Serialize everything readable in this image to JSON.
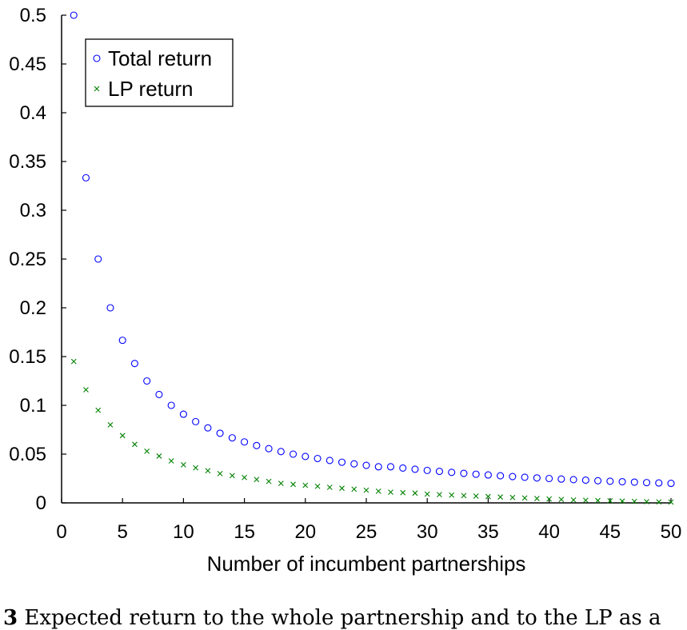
{
  "chart_data": {
    "type": "scatter",
    "title": "",
    "xlabel": "Number of incumbent partnerships",
    "ylabel": "",
    "xlim": [
      0,
      50
    ],
    "ylim": [
      0,
      0.5
    ],
    "xticks": [
      0,
      5,
      10,
      15,
      20,
      25,
      30,
      35,
      40,
      45,
      50
    ],
    "xtick_labels": [
      "0",
      "5",
      "10",
      "15",
      "20",
      "25",
      "30",
      "35",
      "40",
      "45",
      "50"
    ],
    "yticks": [
      0,
      0.05,
      0.1,
      0.15,
      0.2,
      0.25,
      0.3,
      0.35,
      0.4,
      0.45,
      0.5
    ],
    "ytick_labels": [
      "0",
      "0.05",
      "0.1",
      "0.15",
      "0.2",
      "0.25",
      "0.3",
      "0.35",
      "0.4",
      "0.45",
      "0.5"
    ],
    "grid": false,
    "legend_position": "top-left",
    "x": [
      1,
      2,
      3,
      4,
      5,
      6,
      7,
      8,
      9,
      10,
      11,
      12,
      13,
      14,
      15,
      16,
      17,
      18,
      19,
      20,
      21,
      22,
      23,
      24,
      25,
      26,
      27,
      28,
      29,
      30,
      31,
      32,
      33,
      34,
      35,
      36,
      37,
      38,
      39,
      40,
      41,
      42,
      43,
      44,
      45,
      46,
      47,
      48,
      49,
      50
    ],
    "series": [
      {
        "name": "Total return",
        "marker": "circle",
        "color": "#0000ff",
        "values": [
          0.5,
          0.3333,
          0.25,
          0.2,
          0.1667,
          0.1429,
          0.125,
          0.1111,
          0.1,
          0.0909,
          0.0833,
          0.0769,
          0.0714,
          0.0667,
          0.0625,
          0.0588,
          0.0556,
          0.0526,
          0.05,
          0.0476,
          0.0455,
          0.0435,
          0.0417,
          0.04,
          0.0385,
          0.037,
          0.037,
          0.0357,
          0.0345,
          0.0333,
          0.0323,
          0.0313,
          0.0303,
          0.0294,
          0.0286,
          0.0278,
          0.027,
          0.0263,
          0.0256,
          0.025,
          0.0244,
          0.0238,
          0.0233,
          0.0227,
          0.0222,
          0.0217,
          0.0213,
          0.0208,
          0.0204,
          0.02
        ]
      },
      {
        "name": "LP return",
        "marker": "x",
        "color": "#008000",
        "values": [
          0.145,
          0.116,
          0.095,
          0.08,
          0.069,
          0.06,
          0.053,
          0.048,
          0.043,
          0.039,
          0.036,
          0.033,
          0.03,
          0.028,
          0.026,
          0.024,
          0.022,
          0.02,
          0.019,
          0.018,
          0.017,
          0.016,
          0.015,
          0.014,
          0.013,
          0.012,
          0.011,
          0.0105,
          0.01,
          0.009,
          0.0085,
          0.008,
          0.0075,
          0.007,
          0.0065,
          0.006,
          0.0055,
          0.005,
          0.0045,
          0.004,
          0.0035,
          0.003,
          0.0027,
          0.0024,
          0.0021,
          0.0018,
          0.0015,
          0.0012,
          0.001,
          0.0008
        ]
      }
    ]
  },
  "caption": {
    "label": "3",
    "text": "  Expected return to the whole partnership and to the LP as a"
  }
}
